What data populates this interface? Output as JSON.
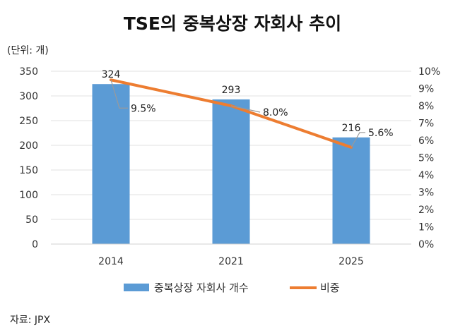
{
  "chart_data": {
    "type": "bar",
    "title": "TSE의 중복상장 자회사 추이",
    "unit_label": "(단위: 개)",
    "categories": [
      "2014",
      "2021",
      "2025"
    ],
    "series": [
      {
        "name": "중복상장 자회사 개수",
        "type": "bar",
        "axis": "left",
        "values": [
          324,
          293,
          216
        ],
        "color": "#5B9BD5"
      },
      {
        "name": "비중",
        "type": "line",
        "axis": "right",
        "values": [
          9.5,
          8.0,
          5.6
        ],
        "color": "#ED7D31"
      }
    ],
    "bar_labels": [
      "324",
      "293",
      "216"
    ],
    "line_labels": [
      "9.5%",
      "8.0%",
      "5.6%"
    ],
    "y_left": {
      "min": 0,
      "max": 350,
      "ticks": [
        "0",
        "50",
        "100",
        "150",
        "200",
        "250",
        "300",
        "350"
      ]
    },
    "y_right": {
      "min": 0,
      "max": 10,
      "ticks": [
        "0%",
        "1%",
        "2%",
        "3%",
        "4%",
        "5%",
        "6%",
        "7%",
        "8%",
        "9%",
        "10%"
      ]
    },
    "grid": true,
    "legend_position": "bottom",
    "source": "자료: JPX"
  }
}
